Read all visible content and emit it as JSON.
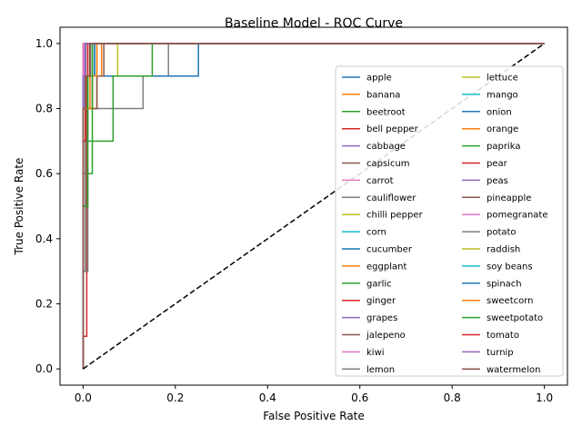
{
  "chart_data": {
    "type": "line",
    "title": "Baseline Model - ROC Curve",
    "xlabel": "False Positive Rate",
    "ylabel": "True Positive Rate",
    "xlim": [
      -0.05,
      1.05
    ],
    "ylim": [
      -0.05,
      1.05
    ],
    "xticks": [
      0.0,
      0.2,
      0.4,
      0.6,
      0.8,
      1.0
    ],
    "yticks": [
      0.0,
      0.2,
      0.4,
      0.6,
      0.8,
      1.0
    ],
    "xtick_labels": [
      "0.0",
      "0.2",
      "0.4",
      "0.6",
      "0.8",
      "1.0"
    ],
    "ytick_labels": [
      "0.0",
      "0.2",
      "0.4",
      "0.6",
      "0.8",
      "1.0"
    ],
    "grid": false,
    "legend": {
      "placement": "right",
      "columns": 2
    },
    "diagonal": {
      "x": [
        0,
        1
      ],
      "y": [
        0,
        1
      ],
      "color": "#000000",
      "style": "dashed"
    },
    "series": [
      {
        "name": "apple",
        "color": "#1f77b4",
        "x": [
          0,
          0,
          0.015,
          0.015,
          1
        ],
        "y": [
          0,
          0.9,
          0.9,
          1,
          1
        ]
      },
      {
        "name": "banana",
        "color": "#ff7f0e",
        "x": [
          0,
          0,
          0.01,
          0.01,
          1
        ],
        "y": [
          0,
          0.7,
          0.7,
          1,
          1
        ]
      },
      {
        "name": "beetroot",
        "color": "#2ca02c",
        "x": [
          0,
          0,
          0.005,
          0.005,
          1
        ],
        "y": [
          0,
          0.5,
          0.5,
          1,
          1
        ]
      },
      {
        "name": "bell pepper",
        "color": "#d62728",
        "x": [
          0,
          0,
          0.008,
          0.008,
          0.015,
          0.015,
          1
        ],
        "y": [
          0,
          0.1,
          0.1,
          0.9,
          0.9,
          1,
          1
        ]
      },
      {
        "name": "cabbage",
        "color": "#9467bd",
        "x": [
          0,
          0,
          0.004,
          0.004,
          1
        ],
        "y": [
          0,
          0.8,
          0.8,
          1,
          1
        ]
      },
      {
        "name": "capsicum",
        "color": "#8c564b",
        "x": [
          0,
          0,
          0.01,
          0.01,
          0.015,
          0.015,
          1
        ],
        "y": [
          0,
          0.3,
          0.3,
          0.9,
          0.9,
          1,
          1
        ]
      },
      {
        "name": "carrot",
        "color": "#e377c2",
        "x": [
          0,
          0,
          0.02,
          0.02,
          1
        ],
        "y": [
          0,
          0.9,
          0.9,
          1,
          1
        ]
      },
      {
        "name": "cauliflower",
        "color": "#7f7f7f",
        "x": [
          0,
          0,
          0.01,
          0.01,
          0.13,
          0.13,
          0.185,
          0.185,
          1
        ],
        "y": [
          0,
          0.3,
          0.3,
          0.8,
          0.8,
          0.9,
          0.9,
          1,
          1
        ]
      },
      {
        "name": "chilli pepper",
        "color": "#bcbd22",
        "x": [
          0,
          0,
          0.005,
          0.005,
          0.075,
          0.075,
          1
        ],
        "y": [
          0,
          0.6,
          0.6,
          0.9,
          0.9,
          1,
          1
        ]
      },
      {
        "name": "corn",
        "color": "#17becf",
        "x": [
          0,
          0,
          0.003,
          0.003,
          1
        ],
        "y": [
          0,
          0.9,
          0.9,
          1,
          1
        ]
      },
      {
        "name": "cucumber",
        "color": "#1f77b4",
        "x": [
          0,
          0,
          0.185,
          0.185,
          0.25,
          0.25,
          1
        ],
        "y": [
          0,
          0.9,
          0.9,
          0.9,
          0.9,
          1,
          1
        ]
      },
      {
        "name": "eggplant",
        "color": "#ff7f0e",
        "x": [
          0,
          0,
          0.03,
          0.03,
          0.04,
          0.04,
          1
        ],
        "y": [
          0,
          0.8,
          0.8,
          0.9,
          0.9,
          1,
          1
        ]
      },
      {
        "name": "garlic",
        "color": "#2ca02c",
        "x": [
          0,
          0,
          0.02,
          0.02,
          0.065,
          0.065,
          0.15,
          0.15,
          1
        ],
        "y": [
          0,
          0.7,
          0.7,
          0.7,
          0.7,
          0.9,
          0.9,
          1,
          1
        ]
      },
      {
        "name": "ginger",
        "color": "#d62728",
        "x": [
          0,
          0,
          0.003,
          0.003,
          1
        ],
        "y": [
          0,
          1,
          1,
          1,
          1
        ]
      },
      {
        "name": "grapes",
        "color": "#9467bd",
        "x": [
          0,
          0,
          0.02,
          0.02,
          1
        ],
        "y": [
          0,
          0.9,
          0.9,
          1,
          1
        ]
      },
      {
        "name": "jalepeno",
        "color": "#8c564b",
        "x": [
          0,
          0,
          0.03,
          0.03,
          0.045,
          0.045,
          1
        ],
        "y": [
          0,
          0.8,
          0.8,
          0.9,
          0.9,
          1,
          1
        ]
      },
      {
        "name": "kiwi",
        "color": "#e377c2",
        "x": [
          0,
          0,
          0.003,
          0.003,
          1
        ],
        "y": [
          0,
          0.9,
          0.9,
          1,
          1
        ]
      },
      {
        "name": "lemon",
        "color": "#7f7f7f",
        "x": [
          0,
          0,
          0.005,
          0.005,
          0.02,
          0.02,
          1
        ],
        "y": [
          0,
          0.7,
          0.7,
          0.8,
          0.8,
          1,
          1
        ]
      },
      {
        "name": "lettuce",
        "color": "#bcbd22",
        "x": [
          0,
          0,
          0.01,
          0.01,
          0.02,
          0.02,
          1
        ],
        "y": [
          0,
          0.8,
          0.8,
          0.9,
          0.9,
          1,
          1
        ]
      },
      {
        "name": "mango",
        "color": "#17becf",
        "x": [
          0,
          0,
          0.025,
          0.025,
          1
        ],
        "y": [
          0,
          0.9,
          0.9,
          1,
          1
        ]
      },
      {
        "name": "onion",
        "color": "#1f77b4",
        "x": [
          0,
          0,
          0.01,
          0.01,
          0.025,
          0.025,
          1
        ],
        "y": [
          0,
          0.7,
          0.7,
          0.9,
          0.9,
          1,
          1
        ]
      },
      {
        "name": "orange",
        "color": "#ff7f0e",
        "x": [
          0,
          0,
          0.02,
          0.02,
          0.03,
          0.03,
          1
        ],
        "y": [
          0,
          0.8,
          0.8,
          0.9,
          0.9,
          1,
          1
        ]
      },
      {
        "name": "paprika",
        "color": "#2ca02c",
        "x": [
          0,
          0,
          0.01,
          0.01,
          0.02,
          0.02,
          1
        ],
        "y": [
          0,
          0.5,
          0.5,
          0.6,
          0.6,
          1,
          1
        ]
      },
      {
        "name": "pear",
        "color": "#d62728",
        "x": [
          0,
          0,
          0.005,
          0.005,
          0.01,
          0.01,
          1
        ],
        "y": [
          0,
          0.6,
          0.6,
          0.9,
          0.9,
          1,
          1
        ]
      },
      {
        "name": "peas",
        "color": "#9467bd",
        "x": [
          0,
          0,
          0.005,
          0.005,
          1
        ],
        "y": [
          0,
          0.9,
          0.9,
          1,
          1
        ]
      },
      {
        "name": "pineapple",
        "color": "#8c564b",
        "x": [
          0,
          0,
          0.005,
          0.005,
          0.015,
          0.015,
          1
        ],
        "y": [
          0,
          0.8,
          0.8,
          0.9,
          0.9,
          1,
          1
        ]
      },
      {
        "name": "pomegranate",
        "color": "#e377c2",
        "x": [
          0,
          0,
          0.003,
          0.003,
          1
        ],
        "y": [
          0,
          1,
          1,
          1,
          1
        ]
      },
      {
        "name": "potato",
        "color": "#7f7f7f",
        "x": [
          0,
          0,
          0.005,
          0.005,
          0.01,
          0.01,
          1
        ],
        "y": [
          0,
          0.3,
          0.3,
          0.8,
          0.8,
          1,
          1
        ]
      },
      {
        "name": "raddish",
        "color": "#bcbd22",
        "x": [
          0,
          0,
          0.01,
          0.01,
          0.02,
          0.02,
          1
        ],
        "y": [
          0,
          0.8,
          0.8,
          0.9,
          0.9,
          1,
          1
        ]
      },
      {
        "name": "soy beans",
        "color": "#17becf",
        "x": [
          0,
          0,
          0.01,
          0.01,
          0.02,
          0.02,
          1
        ],
        "y": [
          0,
          0.8,
          0.8,
          0.9,
          0.9,
          1,
          1
        ]
      },
      {
        "name": "spinach",
        "color": "#1f77b4",
        "x": [
          0,
          0,
          0.005,
          0.005,
          1
        ],
        "y": [
          0,
          0.9,
          0.9,
          1,
          1
        ]
      },
      {
        "name": "sweetcorn",
        "color": "#ff7f0e",
        "x": [
          0,
          0,
          0.015,
          0.015,
          0.03,
          0.03,
          1
        ],
        "y": [
          0,
          0.8,
          0.8,
          0.9,
          0.9,
          1,
          1
        ]
      },
      {
        "name": "sweetpotato",
        "color": "#2ca02c",
        "x": [
          0,
          0,
          0.01,
          0.01,
          0.02,
          0.02,
          1
        ],
        "y": [
          0,
          0.5,
          0.5,
          0.9,
          0.9,
          1,
          1
        ]
      },
      {
        "name": "tomato",
        "color": "#d62728",
        "x": [
          0,
          0,
          0.005,
          0.005,
          0.01,
          0.01,
          1
        ],
        "y": [
          0,
          0.7,
          0.7,
          0.9,
          0.9,
          1,
          1
        ]
      },
      {
        "name": "turnip",
        "color": "#9467bd",
        "x": [
          0,
          0,
          0.005,
          0.005,
          1
        ],
        "y": [
          0,
          0.9,
          0.9,
          1,
          1
        ]
      },
      {
        "name": "watermelon",
        "color": "#8c564b",
        "x": [
          0,
          0,
          0.005,
          0.005,
          0.015,
          0.015,
          1
        ],
        "y": [
          0,
          0.8,
          0.8,
          0.9,
          0.9,
          1,
          1
        ]
      }
    ]
  }
}
